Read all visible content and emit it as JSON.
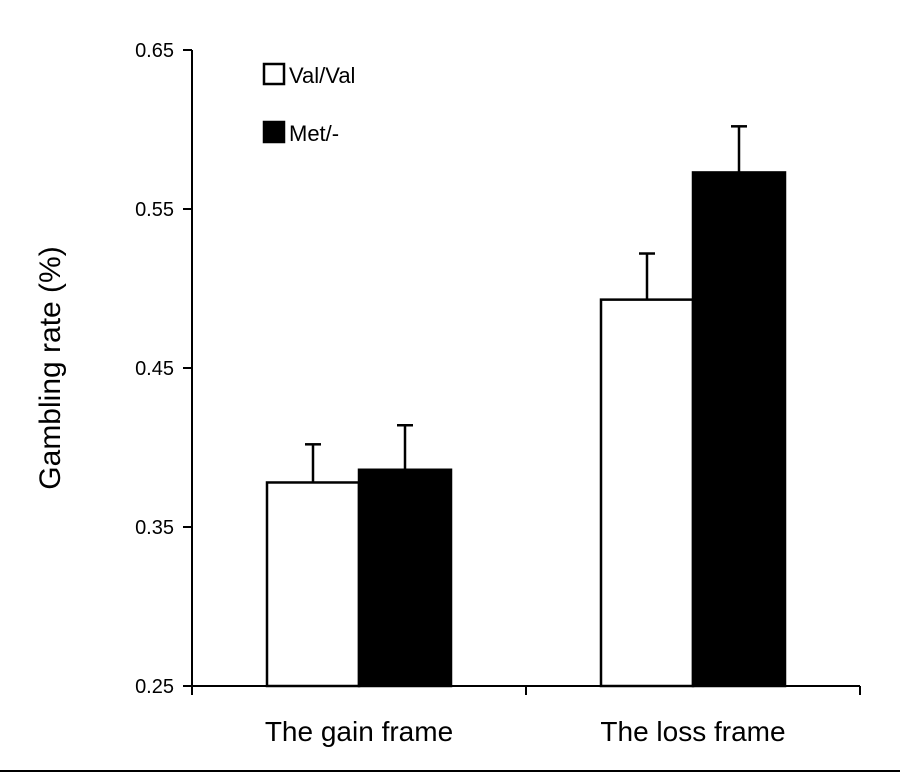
{
  "chart_data": {
    "type": "bar",
    "categories": [
      "The gain frame",
      "The loss frame"
    ],
    "series": [
      {
        "name": "Val/Val",
        "values": [
          0.378,
          0.493
        ],
        "errors": [
          0.024,
          0.029
        ],
        "color": "#ffffff"
      },
      {
        "name": "Met/-",
        "values": [
          0.386,
          0.573
        ],
        "errors": [
          0.028,
          0.029
        ],
        "color": "#000000"
      }
    ],
    "ylabel": "Gambling rate (%)",
    "xlabel": "",
    "ylim": [
      0.25,
      0.65
    ],
    "yticks": [
      "0.25",
      "0.35",
      "0.45",
      "0.55",
      "0.65"
    ],
    "grid": false,
    "legend_position": "top-left"
  }
}
